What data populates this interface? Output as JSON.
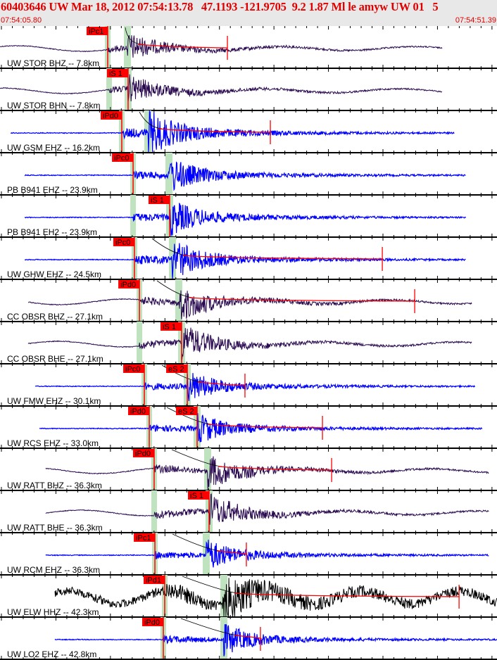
{
  "header": {
    "title": "60403646 UW Mar 18, 2012 07:54:13.78   47.1193 -121.9705  9.2 1.87 Ml le amyw UW 01   5",
    "start_time": "07:54:05.80",
    "end_time": "07:54:51.39"
  },
  "colors": {
    "header_text": "#e00000",
    "pick": "#ff0000",
    "band": "#bfe3bf",
    "short_period": "#0000ff",
    "broadband": "#2a0a50",
    "hhz": "#000000"
  },
  "chart_data": {
    "type": "line",
    "title": "",
    "x_units": "seconds after 07:54:05.80",
    "xlim": [
      0,
      45.59
    ],
    "traces": [
      {
        "label": "UW STOR BHZ -- 7.8km",
        "color": "broadband",
        "range": [
          0,
          40.56
        ],
        "p": 9.88,
        "s": 11.69,
        "p_label": "iPc1",
        "s_label": "",
        "coda": 20.86,
        "amp": 0.6,
        "lp": 1
      },
      {
        "label": "UW STOR BHN -- 7.8km",
        "color": "broadband",
        "range": [
          0,
          40.56
        ],
        "p": 10.01,
        "s": 11.75,
        "p_label": "",
        "s_label": "iS 1",
        "coda": null,
        "amp": 0.6,
        "lp": 1
      },
      {
        "label": "UW GSM EHZ -- 16.2km",
        "color": "short_period",
        "range": [
          0.97,
          41.66
        ],
        "p": 11.17,
        "s": 13.56,
        "p_label": "iPd0",
        "s_label": "",
        "coda": 24.8,
        "amp": 1.0,
        "lp": 0
      },
      {
        "label": "PB B941 EHZ -- 23.9km",
        "color": "short_period",
        "range": [
          2.26,
          42.75
        ],
        "p": 12.21,
        "s": 15.5,
        "p_label": "iPc0",
        "s_label": "",
        "coda": null,
        "amp": 0.8,
        "lp": 0
      },
      {
        "label": "PB B941 EH2 -- 23.9km",
        "color": "short_period",
        "range": [
          2.26,
          42.75
        ],
        "p": 12.21,
        "s": 15.56,
        "p_label": "",
        "s_label": "iS 1",
        "coda": null,
        "amp": 0.8,
        "lp": 0
      },
      {
        "label": "UW GHW EHZ -- 24.5km",
        "color": "short_period",
        "range": [
          2.26,
          42.75
        ],
        "p": 12.33,
        "s": 15.82,
        "p_label": "iPc0",
        "s_label": "",
        "coda": 35.07,
        "amp": 0.9,
        "lp": 0
      },
      {
        "label": "CC OBSR BHZ -- 27.1km",
        "color": "broadband",
        "range": [
          2.58,
          43.27
        ],
        "p": 12.79,
        "s": 16.4,
        "p_label": "iPd0",
        "s_label": "",
        "coda": 38.04,
        "amp": 0.8,
        "lp": 1
      },
      {
        "label": "CC OBSR BHE -- 27.1km",
        "color": "broadband",
        "range": [
          2.58,
          43.27
        ],
        "p": 12.79,
        "s": 16.66,
        "p_label": "",
        "s_label": "iS 1",
        "coda": null,
        "amp": 0.8,
        "lp": 1
      },
      {
        "label": "UW FMW EHZ -- 30.1km",
        "color": "short_period",
        "range": [
          3.23,
          43.59
        ],
        "p": 13.24,
        "s": 17.18,
        "p_label": "iPc0",
        "s_label": "eS 2",
        "coda": 22.47,
        "amp": 0.7,
        "lp": 0
      },
      {
        "label": "UW RCS EHZ -- 33.0km",
        "color": "short_period",
        "range": [
          3.62,
          44.24
        ],
        "p": 13.69,
        "s": 18.08,
        "p_label": "iPd0",
        "s_label": "eS 2",
        "coda": 29.58,
        "amp": 0.7,
        "lp": 0
      },
      {
        "label": "UW RATT BHZ -- 36.3km",
        "color": "broadband",
        "range": [
          4.2,
          44.88
        ],
        "p": 14.14,
        "s": 19.05,
        "p_label": "iPd0",
        "s_label": "",
        "coda": 30.42,
        "amp": 0.8,
        "lp": 1
      },
      {
        "label": "UW RATT BHE -- 36.3km",
        "color": "broadband",
        "range": [
          4.2,
          44.88
        ],
        "p": 14.14,
        "s": 19.18,
        "p_label": "",
        "s_label": "iS 1",
        "coda": null,
        "amp": 0.8,
        "lp": 1
      },
      {
        "label": "UW RCM EHZ -- 36.3km",
        "color": "short_period",
        "range": [
          4.2,
          44.88
        ],
        "p": 14.21,
        "s": 18.92,
        "p_label": "iPc1",
        "s_label": "",
        "coda": 22.6,
        "amp": 0.7,
        "lp": 0
      },
      {
        "label": "UW ELW HHZ -- 42.3km",
        "color": "hhz",
        "range": [
          5.04,
          45.59
        ],
        "p": 15.11,
        "s": 20.54,
        "p_label": "iPd1",
        "s_label": "",
        "coda": 42.11,
        "amp": 1.0,
        "lp": 2
      },
      {
        "label": "UW LO2 EHZ -- 42.8km",
        "color": "short_period",
        "range": [
          5.04,
          45.59
        ],
        "p": 14.98,
        "s": 20.54,
        "p_label": "iPd0",
        "s_label": "",
        "coda": 23.89,
        "amp": 0.7,
        "lp": 0
      }
    ]
  }
}
